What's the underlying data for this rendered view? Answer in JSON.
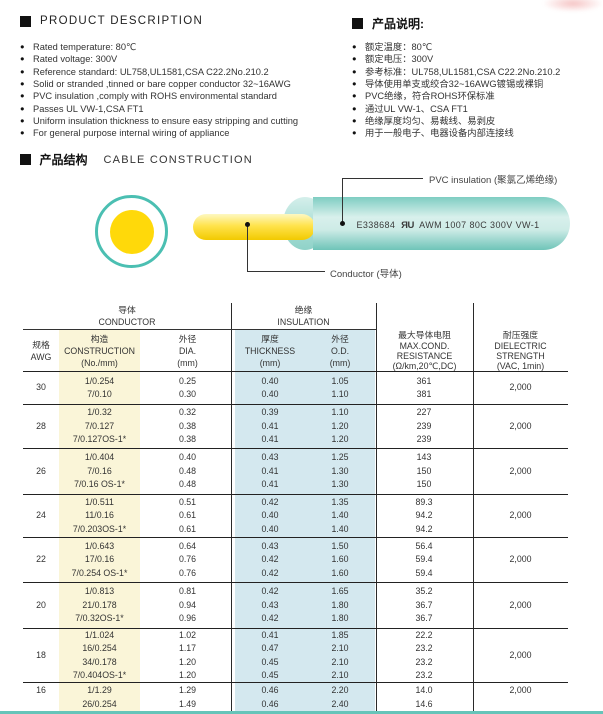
{
  "product_description": {
    "title_en": "PRODUCT DESCRIPTION",
    "items_en": [
      "Rated temperature: 80℃",
      "Rated voltage: 300V",
      "Reference standard: UL758,UL1581,CSA C22.2No.210.2",
      "Solid or stranded ,tinned or bare copper conductor 32~16AWG",
      "PVC insulation ,comply with ROHS environmental standard",
      "Passes UL VW-1,CSA FT1",
      "Uniform insulation thickness to ensure easy stripping and cutting",
      "For general purpose internal wiring of appliance"
    ],
    "title_zh": "产品说明:",
    "items_zh": [
      "额定温度：80℃",
      "额定电压：300V",
      "参考标准：UL758,UL1581,CSA C22.2No.210.2",
      "导体使用单支或绞合32~16AWG镀锡或裸铜",
      "PVC绝缘，符合ROHS环保标准",
      "通过UL VW-1、CSA FT1",
      "绝缘厚度均匀、易裁线、易剥皮",
      "用于一般电子、电器设备内部连接线"
    ]
  },
  "construction": {
    "title_zh": "产品结构",
    "title_en": "CABLE CONSTRUCTION",
    "cable_print_left": "E338684",
    "ul_mark": "ЯU",
    "cable_print_right": "AWM 1007 80C 300V VW-1",
    "label_insulation": "PVC insulation (聚氯乙烯绝缘)",
    "label_conductor": "Conductor (导体)"
  },
  "table": {
    "groups": {
      "conductor_zh": "导体",
      "conductor_en": "CONDUCTOR",
      "insulation_zh": "绝缘",
      "insulation_en": "INSULATION"
    },
    "headers": {
      "awg": [
        "规格",
        "AWG"
      ],
      "construction": [
        "构造",
        "CONSTRUCTION",
        "(No./mm)"
      ],
      "dia": [
        "外径",
        "DIA.",
        "(mm)"
      ],
      "thickness": [
        "厚度",
        "THICKNESS",
        "(mm)"
      ],
      "od": [
        "外径",
        "O.D.",
        "(mm)"
      ],
      "resistance": [
        "最大导体电阻",
        "MAX.COND.",
        "RESISTANCE",
        "(Ω/km,20℃,DC)"
      ],
      "dielectric": [
        "耐压强度",
        "DIELECTRIC",
        "STRENGTH",
        "(VAC, 1min)"
      ]
    },
    "rows": [
      {
        "awg": "30",
        "construction": [
          "1/0.254",
          "7/0.10"
        ],
        "dia": [
          "0.25",
          "0.30"
        ],
        "thickness": [
          "0.40",
          "0.40"
        ],
        "od": [
          "1.05",
          "1.10"
        ],
        "resistance": [
          "361",
          "381"
        ],
        "dielectric": "2,000"
      },
      {
        "awg": "28",
        "construction": [
          "1/0.32",
          "7/0.127",
          "7/0.127OS-1*"
        ],
        "dia": [
          "0.32",
          "0.38",
          "0.38"
        ],
        "thickness": [
          "0.39",
          "0.41",
          "0.41"
        ],
        "od": [
          "1.10",
          "1.20",
          "1.20"
        ],
        "resistance": [
          "227",
          "239",
          "239"
        ],
        "dielectric": "2,000"
      },
      {
        "awg": "26",
        "construction": [
          "1/0.404",
          "7/0.16",
          "7/0.16 OS-1*"
        ],
        "dia": [
          "0.40",
          "0.48",
          "0.48"
        ],
        "thickness": [
          "0.43",
          "0.41",
          "0.41"
        ],
        "od": [
          "1.25",
          "1.30",
          "1.30"
        ],
        "resistance": [
          "143",
          "150",
          "150"
        ],
        "dielectric": "2,000"
      },
      {
        "awg": "24",
        "construction": [
          "1/0.511",
          "11/0.16",
          "7/0.203OS-1*"
        ],
        "dia": [
          "0.51",
          "0.61",
          "0.61"
        ],
        "thickness": [
          "0.42",
          "0.40",
          "0.40"
        ],
        "od": [
          "1.35",
          "1.40",
          "1.40"
        ],
        "resistance": [
          "89.3",
          "94.2",
          "94.2"
        ],
        "dielectric": "2,000"
      },
      {
        "awg": "22",
        "construction": [
          "1/0.643",
          "17/0.16",
          "7/0.254 OS-1*"
        ],
        "dia": [
          "0.64",
          "0.76",
          "0.76"
        ],
        "thickness": [
          "0.43",
          "0.42",
          "0.42"
        ],
        "od": [
          "1.50",
          "1.60",
          "1.60"
        ],
        "resistance": [
          "56.4",
          "59.4",
          "59.4"
        ],
        "dielectric": "2,000"
      },
      {
        "awg": "20",
        "construction": [
          "1/0.813",
          "21/0.178",
          "7/0.32OS-1*"
        ],
        "dia": [
          "0.81",
          "0.94",
          "0.96"
        ],
        "thickness": [
          "0.42",
          "0.43",
          "0.42"
        ],
        "od": [
          "1.65",
          "1.80",
          "1.80"
        ],
        "resistance": [
          "35.2",
          "36.7",
          "36.7"
        ],
        "dielectric": "2,000"
      },
      {
        "awg": "18",
        "construction": [
          "1/1.024",
          "16/0.254",
          "34/0.178",
          "7/0.404OS-1*"
        ],
        "dia": [
          "1.02",
          "1.17",
          "1.20",
          "1.20"
        ],
        "thickness": [
          "0.41",
          "0.47",
          "0.45",
          "0.45"
        ],
        "od": [
          "1.85",
          "2.10",
          "2.10",
          "2.10"
        ],
        "resistance": [
          "22.2",
          "23.2",
          "23.2",
          "23.2"
        ],
        "dielectric": "2,000"
      },
      {
        "awg": "16",
        "construction": [
          "1/1.29",
          "26/0.254"
        ],
        "dia": [
          "1.29",
          "1.49"
        ],
        "thickness": [
          "0.46",
          "0.46"
        ],
        "od": [
          "2.20",
          "2.40"
        ],
        "resistance": [
          "14.0",
          "14.6"
        ],
        "dielectric": "2,000"
      }
    ]
  },
  "colors": {
    "accent_teal": "#4bbfb2",
    "conductor_yellow": "#ffd90a",
    "band_yellow": "#faf5d8",
    "band_blue": "#d4e8ef"
  }
}
